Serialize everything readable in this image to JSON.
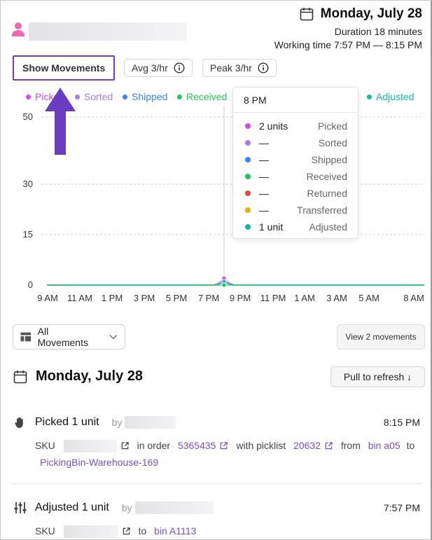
{
  "header": {
    "date": "Monday, July 28",
    "duration": "Duration 18 minutes",
    "working_time": "Working time 7:57 PM — 8:15 PM"
  },
  "chips": {
    "show_movements": "Show Movements",
    "avg": "Avg 3/hr",
    "peak": "Peak 3/hr"
  },
  "legend": [
    {
      "label": "Picked",
      "color": "#d946ef"
    },
    {
      "label": "Sorted",
      "color": "#a17de8"
    },
    {
      "label": "Shipped",
      "color": "#3b82f6"
    },
    {
      "label": "Received",
      "color": "#22c55e"
    },
    {
      "label": "Adjusted",
      "color": "#14b8a6"
    }
  ],
  "chart_data": {
    "type": "line",
    "y_ticks": [
      "50",
      "30",
      "15",
      "0"
    ],
    "x_ticks": [
      "9 AM",
      "11 AM",
      "1 PM",
      "3 PM",
      "5 PM",
      "7 PM",
      "9 PM",
      "11 PM",
      "1 AM",
      "3 AM",
      "5 AM",
      "8 AM"
    ],
    "series": [
      {
        "name": "Picked",
        "color": "#d946ef",
        "peak_at": "8 PM",
        "peak_value": 2
      },
      {
        "name": "Adjusted",
        "color": "#14b8a6",
        "peak_at": "8 PM",
        "peak_value": 1
      },
      {
        "name": "Received",
        "color": "#22c55e",
        "peak_at": "8 PM",
        "peak_value": 0
      }
    ],
    "ylim": [
      0,
      50
    ],
    "grid": true
  },
  "tooltip": {
    "title": "8 PM",
    "rows": [
      {
        "value": "2 units",
        "name": "Picked",
        "color": "#d946ef"
      },
      {
        "value": "—",
        "name": "Sorted",
        "color": "#a17de8"
      },
      {
        "value": "—",
        "name": "Shipped",
        "color": "#3b82f6"
      },
      {
        "value": "—",
        "name": "Received",
        "color": "#22c55e"
      },
      {
        "value": "—",
        "name": "Returned",
        "color": "#ef4444"
      },
      {
        "value": "—",
        "name": "Transferred",
        "color": "#eab308"
      },
      {
        "value": "1 unit",
        "name": "Adjusted",
        "color": "#14b8a6"
      }
    ]
  },
  "filters": {
    "dropdown_label": "All Movements",
    "view_button": "View 2 movements"
  },
  "section": {
    "title": "Monday, July 28",
    "refresh": "Pull to refresh ↓"
  },
  "movements": [
    {
      "title": "Picked 1 unit",
      "by": "by",
      "time": "8:15 PM",
      "sku_label": "SKU",
      "in_order": "in order",
      "order_id": "5365435",
      "with_picklist": "with picklist",
      "picklist_id": "20632",
      "from": "from",
      "from_bin": "bin a05",
      "to": "to",
      "to_bin": "PickingBin-Warehouse-169"
    },
    {
      "title": "Adjusted 1 unit",
      "by": "by",
      "time": "7:57 PM",
      "sku_label": "SKU",
      "to": "to",
      "to_bin": "bin A1113"
    }
  ]
}
